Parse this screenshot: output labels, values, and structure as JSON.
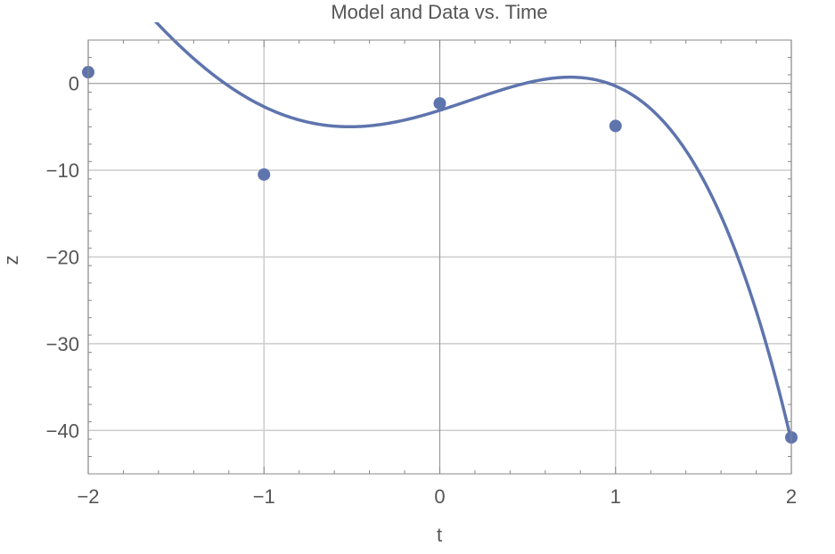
{
  "chart_data": {
    "type": "scatter",
    "title": "Model and Data vs. Time",
    "xlabel": "t",
    "ylabel": "z",
    "xlim": [
      -2,
      2
    ],
    "ylim": [
      -45,
      5
    ],
    "grid": true,
    "x_ticks": [
      -2,
      -1,
      0,
      1,
      2
    ],
    "y_ticks": [
      0,
      -10,
      -20,
      -30,
      -40
    ],
    "x_tick_labels": [
      "−2",
      "−1",
      "0",
      "1",
      "2"
    ],
    "y_tick_labels": [
      "0",
      "−10",
      "−20",
      "−30",
      "−40"
    ],
    "series": [
      {
        "kind": "points",
        "color": "#5e74ad",
        "points": [
          {
            "x": -2,
            "y": 1.3
          },
          {
            "x": -1,
            "y": -10.5
          },
          {
            "x": 0,
            "y": -2.3
          },
          {
            "x": 1,
            "y": -4.9
          },
          {
            "x": 2,
            "y": -40.8
          }
        ]
      },
      {
        "kind": "curve",
        "color": "#5e74ad",
        "model_polynomial_coefficients": [
          -3.1,
          6.37,
          2.93,
          -5.18,
          -1.32
        ]
      }
    ]
  }
}
